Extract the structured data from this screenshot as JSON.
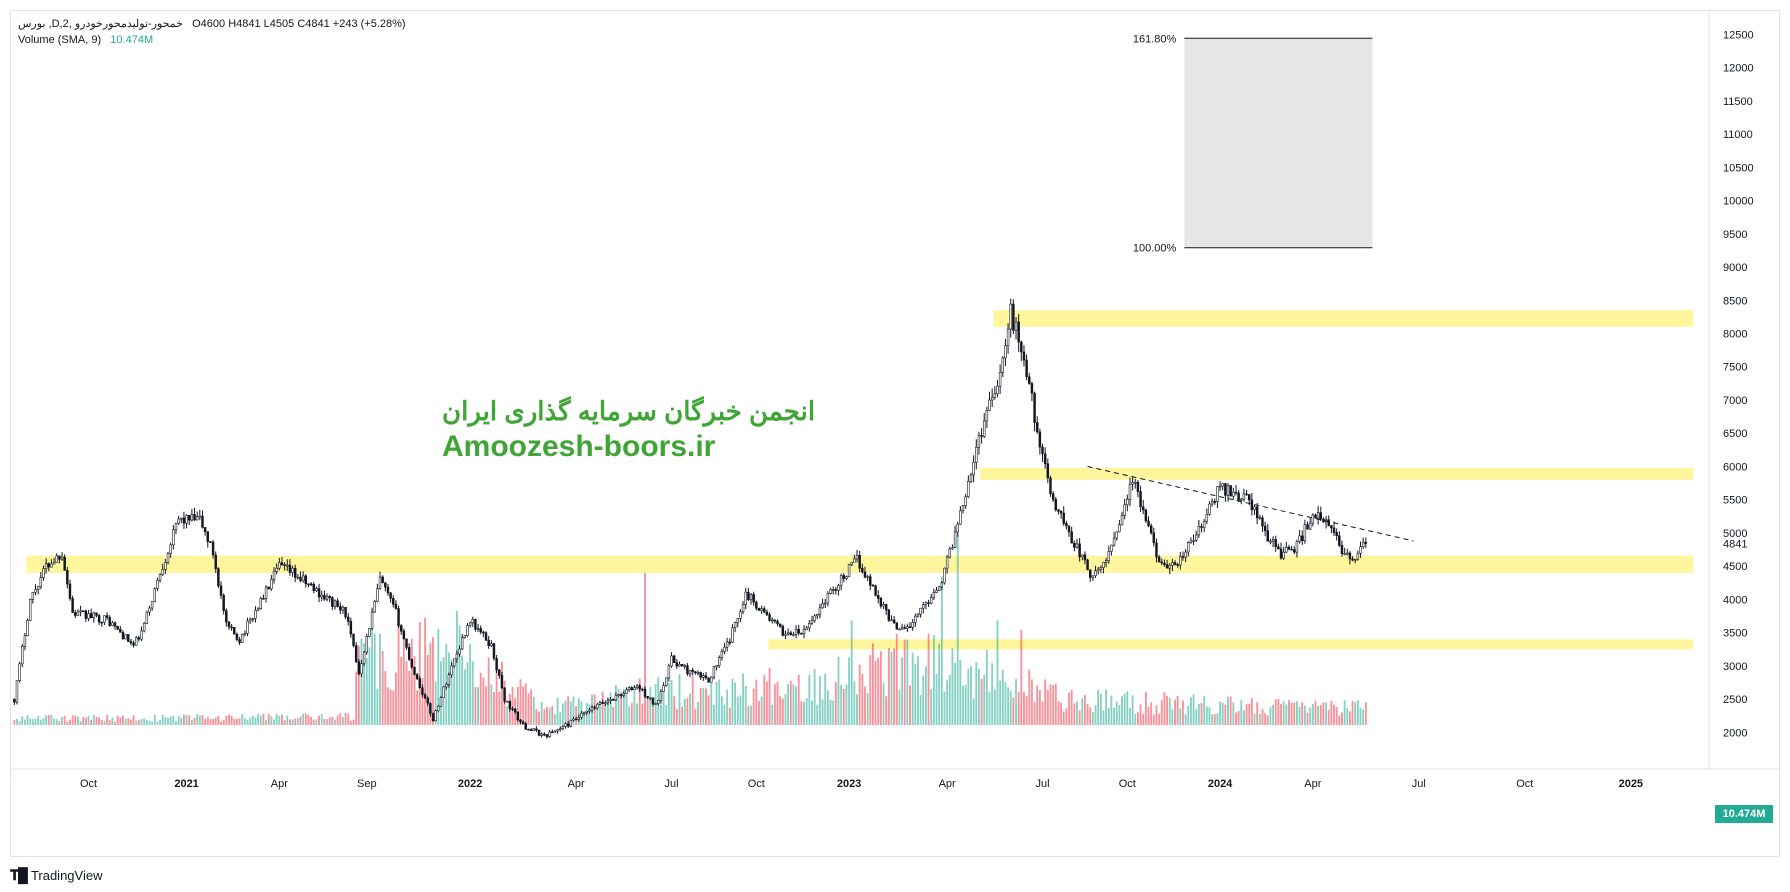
{
  "app": {
    "brand": "TradingView"
  },
  "legend": {
    "symbol": "بورس ,D,خمحور-تولیدمحورخودرو ,2",
    "ohlc": "O4600  H4841  L4505  C4841  +243 (+5.28%)",
    "volume_label": "Volume (SMA, 9)",
    "volume_value": "10.474M"
  },
  "watermark": {
    "persian": "انجمن خبرگان سرمایه گذاری ایران",
    "english": "Amoozesh-boors.ir"
  },
  "last_price_label": "4841",
  "volume_badge": "10.474M",
  "colors": {
    "up": "#22ab94",
    "down": "#f23645",
    "zone": "#fff59d",
    "fib_box": "#e6e6e6",
    "watermark": "#3fa535"
  },
  "chart_data": {
    "type": "candlestick",
    "y_ticks": [
      2000,
      2500,
      3000,
      3500,
      4000,
      4500,
      5000,
      5500,
      6000,
      6500,
      7000,
      7500,
      8000,
      8500,
      9000,
      9500,
      10000,
      10500,
      11000,
      11500,
      12000,
      12500
    ],
    "ylim": [
      1450,
      12700
    ],
    "x_ticks": [
      "Oct",
      "2021",
      "Apr",
      "Sep",
      "2022",
      "Apr",
      "Jul",
      "Oct",
      "2023",
      "Apr",
      "Jul",
      "Oct",
      "2024",
      "Apr",
      "Jul",
      "Oct",
      "2025"
    ],
    "x_tick_bars": [
      28,
      65,
      100,
      133,
      172,
      212,
      248,
      280,
      315,
      352,
      388,
      420,
      455,
      490,
      530,
      570,
      610
    ],
    "total_slots": 640,
    "last_bar": 510,
    "price_path": [
      [
        0,
        2500
      ],
      [
        6,
        4000
      ],
      [
        12,
        4500
      ],
      [
        18,
        4700
      ],
      [
        22,
        3800
      ],
      [
        35,
        3700
      ],
      [
        45,
        3300
      ],
      [
        48,
        3500
      ],
      [
        55,
        4400
      ],
      [
        62,
        5200
      ],
      [
        70,
        5200
      ],
      [
        75,
        4700
      ],
      [
        80,
        3600
      ],
      [
        85,
        3400
      ],
      [
        92,
        3900
      ],
      [
        100,
        4500
      ],
      [
        105,
        4400
      ],
      [
        115,
        4100
      ],
      [
        125,
        3800
      ],
      [
        130,
        2900
      ],
      [
        138,
        4300
      ],
      [
        144,
        3800
      ],
      [
        150,
        3000
      ],
      [
        158,
        2200
      ],
      [
        166,
        3100
      ],
      [
        172,
        3700
      ],
      [
        180,
        3300
      ],
      [
        185,
        2500
      ],
      [
        192,
        2100
      ],
      [
        200,
        1950
      ],
      [
        208,
        2100
      ],
      [
        220,
        2400
      ],
      [
        235,
        2700
      ],
      [
        242,
        2400
      ],
      [
        248,
        3100
      ],
      [
        255,
        2900
      ],
      [
        262,
        2800
      ],
      [
        270,
        3400
      ],
      [
        276,
        4100
      ],
      [
        283,
        3800
      ],
      [
        290,
        3500
      ],
      [
        298,
        3500
      ],
      [
        306,
        4000
      ],
      [
        318,
        4600
      ],
      [
        325,
        4100
      ],
      [
        332,
        3600
      ],
      [
        338,
        3600
      ],
      [
        345,
        4000
      ],
      [
        350,
        4300
      ],
      [
        355,
        5000
      ],
      [
        360,
        5800
      ],
      [
        368,
        7000
      ],
      [
        372,
        7400
      ],
      [
        376,
        8300
      ],
      [
        380,
        7800
      ],
      [
        384,
        7000
      ],
      [
        388,
        6100
      ],
      [
        392,
        5500
      ],
      [
        398,
        5000
      ],
      [
        402,
        4700
      ],
      [
        407,
        4300
      ],
      [
        412,
        4600
      ],
      [
        418,
        5300
      ],
      [
        422,
        5800
      ],
      [
        426,
        5300
      ],
      [
        430,
        4800
      ],
      [
        435,
        4400
      ],
      [
        440,
        4600
      ],
      [
        448,
        5100
      ],
      [
        455,
        5700
      ],
      [
        460,
        5600
      ],
      [
        466,
        5500
      ],
      [
        472,
        5000
      ],
      [
        478,
        4700
      ],
      [
        484,
        4800
      ],
      [
        490,
        5300
      ],
      [
        496,
        5100
      ],
      [
        502,
        4700
      ],
      [
        506,
        4600
      ],
      [
        510,
        4841
      ]
    ],
    "price_noise": 0.035,
    "zones": [
      {
        "from_bar": 370,
        "to_bar": 634,
        "low": 8100,
        "high": 8350
      },
      {
        "from_bar": 365,
        "to_bar": 634,
        "low": 5800,
        "high": 5980
      },
      {
        "from_bar": 5,
        "to_bar": 634,
        "low": 4400,
        "high": 4660
      },
      {
        "from_bar": 285,
        "to_bar": 634,
        "low": 3250,
        "high": 3400
      }
    ],
    "fib_box": {
      "from_bar": 442,
      "to_bar": 513,
      "low": 9290,
      "high": 12440,
      "levels": [
        "100.00%",
        "161.80%"
      ]
    },
    "trendline": {
      "from_bar": 405,
      "from_price": 6000,
      "to_bar": 528,
      "to_price": 4880
    },
    "volume": {
      "profile": [
        [
          0,
          0.04
        ],
        [
          128,
          0.05
        ],
        [
          130,
          0.45
        ],
        [
          165,
          0.45
        ],
        [
          200,
          0.1
        ],
        [
          240,
          0.2
        ],
        [
          300,
          0.25
        ],
        [
          320,
          0.35
        ],
        [
          345,
          0.4
        ],
        [
          370,
          0.3
        ],
        [
          400,
          0.15
        ],
        [
          510,
          0.1
        ]
      ],
      "spikes": [
        [
          135,
          0.6
        ],
        [
          167,
          0.6
        ],
        [
          238,
          0.8
        ],
        [
          316,
          0.55
        ],
        [
          350,
          0.78
        ],
        [
          356,
          1.0
        ],
        [
          371,
          0.55
        ],
        [
          380,
          0.5
        ]
      ]
    }
  }
}
